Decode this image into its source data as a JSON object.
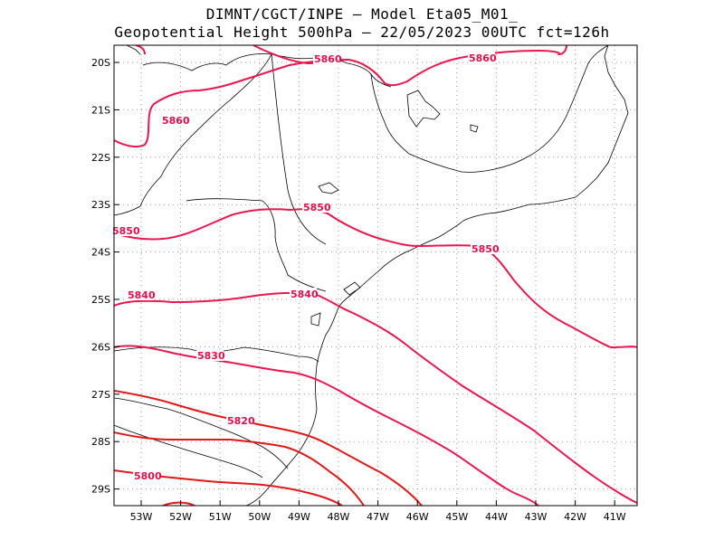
{
  "title": {
    "line1": "DIMNT/CGCT/INPE –   Model Eta05_M01_",
    "line2": "Geopotential Height 500hPa –  22/05/2023 00UTC fct=126h"
  },
  "axes": {
    "lon_ticks": [
      "53W",
      "52W",
      "51W",
      "50W",
      "49W",
      "48W",
      "47W",
      "46W",
      "45W",
      "44W",
      "43W",
      "42W",
      "41W"
    ],
    "lat_ticks": [
      "20S",
      "21S",
      "22S",
      "23S",
      "24S",
      "25S",
      "26S",
      "27S",
      "28S",
      "29S"
    ]
  },
  "colors": {
    "contour_pink": "#e8174e",
    "contour_red": "#e01818",
    "coast": "#000000",
    "grid": "#9a9a9a"
  },
  "contours": [
    {
      "value": 5860,
      "labels": [
        "5860",
        "5860",
        "5860"
      ]
    },
    {
      "value": 5850,
      "labels": [
        "5850",
        "5850",
        "5850"
      ]
    },
    {
      "value": 5840,
      "labels": [
        "5840",
        "5840"
      ]
    },
    {
      "value": 5830,
      "labels": [
        "5830"
      ]
    },
    {
      "value": 5820,
      "labels": [
        "5820"
      ]
    },
    {
      "value": 5800,
      "labels": [
        "5800"
      ]
    }
  ]
}
